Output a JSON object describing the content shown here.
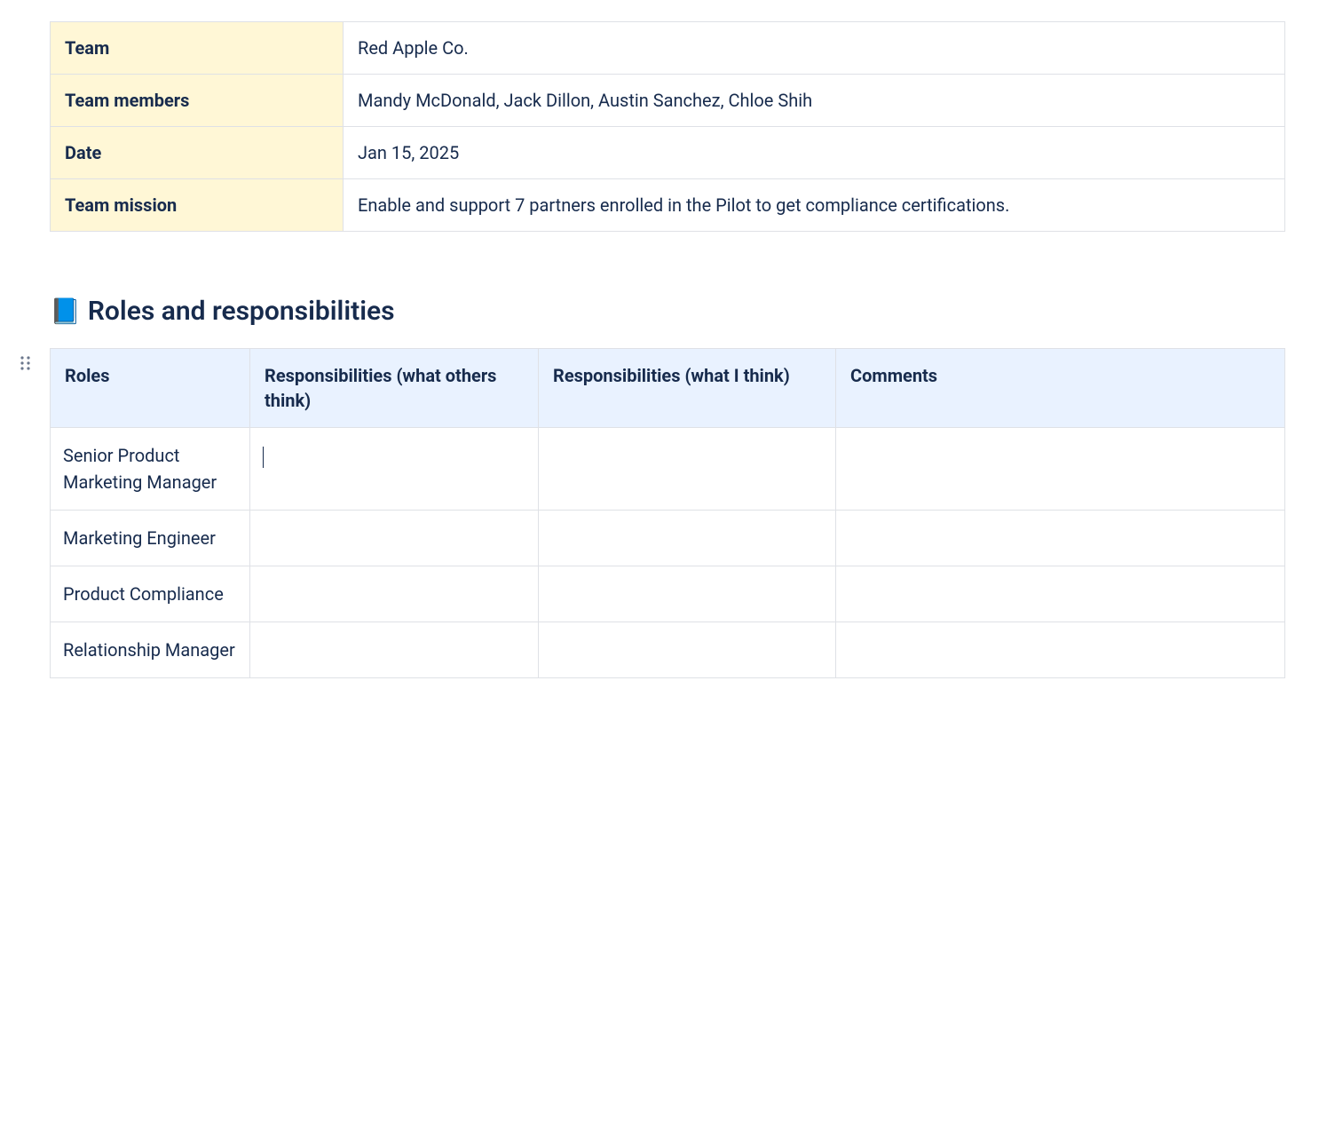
{
  "info_table": {
    "header_bg": "#fff7d6",
    "border_color": "#dfe1e6",
    "text_color": "#172b4d",
    "rows": [
      {
        "label": "Team",
        "value": "Red Apple Co."
      },
      {
        "label": "Team members",
        "value": "Mandy McDonald, Jack Dillon, Austin Sanchez, Chloe Shih"
      },
      {
        "label": "Date",
        "value": "Jan 15, 2025"
      },
      {
        "label": "Team mission",
        "value": "Enable and support 7 partners enrolled in the Pilot to get compliance certifications."
      }
    ]
  },
  "section": {
    "icon": "📘",
    "title": "Roles and responsibilities"
  },
  "roles_table": {
    "header_bg": "#e9f2ff",
    "border_color": "#dfe1e6",
    "columns": [
      "Roles",
      "Responsibilities (what others think)",
      "Responsibilities (what I think)",
      "Comments"
    ],
    "rows": [
      {
        "role": " Senior Product Marketing Manager",
        "resp_others": "",
        "resp_self": "",
        "comments": "",
        "has_cursor": true
      },
      {
        "role": " Marketing Engineer",
        "resp_others": "",
        "resp_self": "",
        "comments": "",
        "has_cursor": false
      },
      {
        "role": "Product Compliance",
        "resp_others": "",
        "resp_self": "",
        "comments": "",
        "has_cursor": false
      },
      {
        "role": "Relationship Manager",
        "resp_others": "",
        "resp_self": "",
        "comments": "",
        "has_cursor": false
      }
    ]
  }
}
